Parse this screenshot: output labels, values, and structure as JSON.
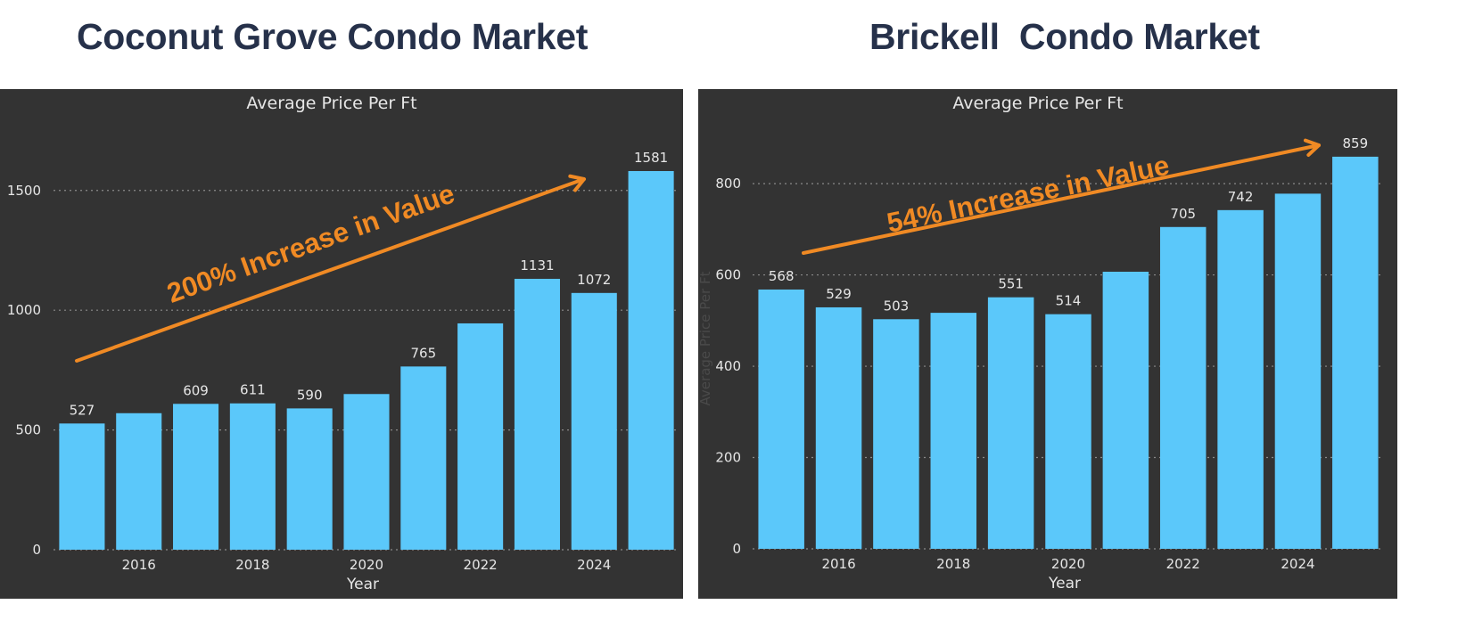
{
  "headings": {
    "left": "Coconut Grove Condo Market",
    "right": "Brickell  Condo Market"
  },
  "colors": {
    "bar": "#5bc8fa",
    "panel": "#333333",
    "arrow": "#f08a24",
    "text": "#e6e6e6",
    "heading": "#26314a"
  },
  "chart_data": [
    {
      "type": "bar",
      "title": "Average Price Per Ft",
      "xlabel": "Year",
      "ylabel": "",
      "categories": [
        "2015",
        "2016",
        "2017",
        "2018",
        "2019",
        "2020",
        "2021",
        "2022",
        "2023",
        "2024",
        "2025"
      ],
      "values": [
        527,
        570,
        609,
        611,
        590,
        650,
        765,
        945,
        1131,
        1072,
        1581
      ],
      "data_labels": [
        "527",
        "",
        "609",
        "611",
        "590",
        "",
        "765",
        "",
        "1131",
        "1072",
        "1581"
      ],
      "x_tick_labels": [
        "",
        "2016",
        "",
        "2018",
        "",
        "2020",
        "",
        "2022",
        "",
        "2024",
        ""
      ],
      "y_ticks": [
        0,
        500,
        1000,
        1500
      ],
      "ylim": [
        0,
        1700
      ],
      "grid": true,
      "annotation": "200% Increase in Value"
    },
    {
      "type": "bar",
      "title": "Average Price Per Ft",
      "xlabel": "Year",
      "ylabel": "Average Price Per Ft",
      "categories": [
        "2015",
        "2016",
        "2017",
        "2018",
        "2019",
        "2020",
        "2021",
        "2022",
        "2023",
        "2024",
        "2025"
      ],
      "values": [
        568,
        529,
        503,
        517,
        551,
        514,
        607,
        705,
        742,
        778,
        859
      ],
      "data_labels": [
        "568",
        "529",
        "503",
        "",
        "551",
        "514",
        "",
        "705",
        "742",
        "",
        "859"
      ],
      "x_tick_labels": [
        "",
        "2016",
        "",
        "2018",
        "",
        "2020",
        "",
        "2022",
        "",
        "2024",
        ""
      ],
      "y_ticks": [
        0,
        200,
        400,
        600,
        800
      ],
      "ylim": [
        0,
        890
      ],
      "grid": true,
      "annotation": "54% Increase in Value"
    }
  ]
}
